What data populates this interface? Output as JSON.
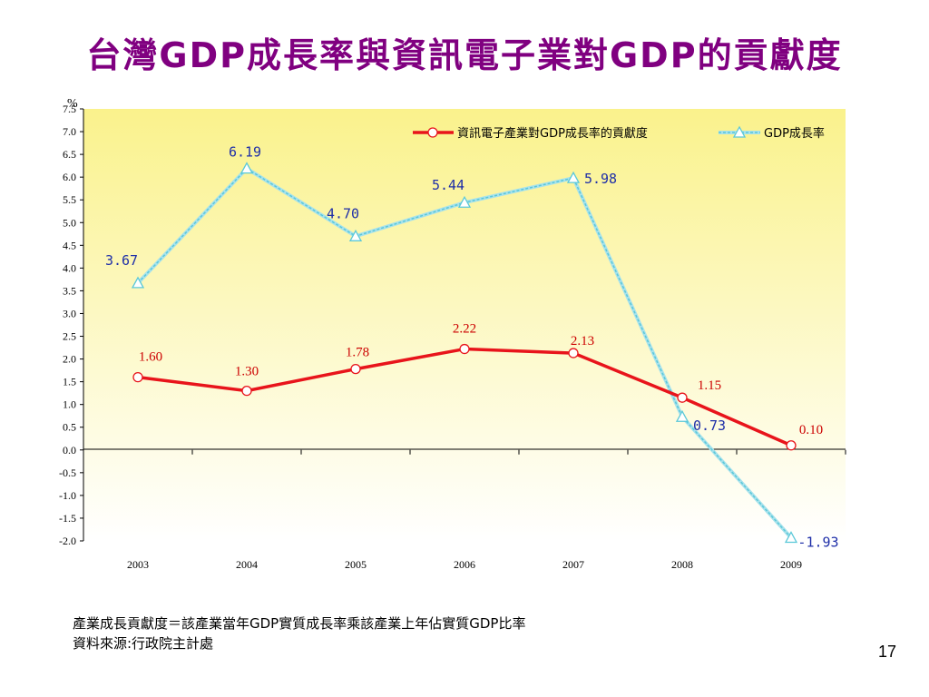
{
  "slide": {
    "title": "台灣GDP成長率與資訊電子業對GDP的貢獻度",
    "note_1": "產業成長貢獻度＝該產業當年GDP實質成長率乘該產業上年佔實質GDP比率",
    "note_2": "資料來源:行政院主計處",
    "page_number": "17"
  },
  "chart_data": {
    "type": "line",
    "title": "",
    "xlabel": "",
    "ylabel": "%",
    "categories": [
      "2003",
      "2004",
      "2005",
      "2006",
      "2007",
      "2008",
      "2009"
    ],
    "y_ticks": [
      "7.5",
      "7.0",
      "6.5",
      "6.0",
      "5.5",
      "5.0",
      "4.5",
      "4.0",
      "3.5",
      "3.0",
      "2.5",
      "2.0",
      "1.5",
      "1.0",
      "0.5",
      "0.0",
      "-0.5",
      "-1.0",
      "-1.5",
      "-2.0"
    ],
    "ylim": [
      -2.0,
      7.5
    ],
    "grid": false,
    "legend_position": "top-right",
    "series": [
      {
        "name": "資訊電子產業對GDP成長率的貢獻度",
        "color": "#e8141b",
        "marker": "circle",
        "values": [
          1.6,
          1.3,
          1.78,
          2.22,
          2.13,
          1.15,
          0.1
        ],
        "labels": [
          "1.60",
          "1.30",
          "1.78",
          "2.22",
          "2.13",
          "1.15",
          "0.10"
        ]
      },
      {
        "name": "GDP成長率",
        "color": "#5bc8d8",
        "marker": "triangle",
        "values": [
          3.67,
          6.19,
          4.7,
          5.44,
          5.98,
          0.73,
          -1.93
        ],
        "labels": [
          "3.67",
          "6.19",
          "4.70",
          "5.44",
          "5.98",
          "0.73",
          "-1.93"
        ]
      }
    ]
  }
}
